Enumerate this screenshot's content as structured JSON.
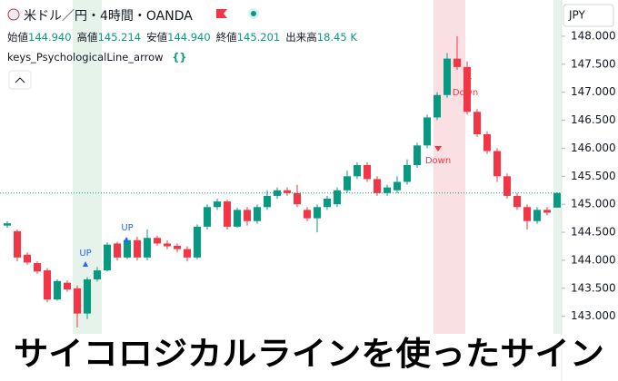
{
  "header": {
    "symbol": "米ドル／円・4時間・OANDA",
    "ohlc": [
      {
        "label": "始値",
        "value": "144.940"
      },
      {
        "label": "高値",
        "value": "145.214"
      },
      {
        "label": "安値",
        "value": "144.940"
      },
      {
        "label": "終値",
        "value": "145.201"
      },
      {
        "label": "出来高",
        "value": "18.45 K"
      }
    ],
    "indicator": "keys_PsychologicalLine_arrow",
    "currency": "JPY"
  },
  "chart_data": {
    "type": "candlestick",
    "open": [
      144.62,
      144.52,
      144.1,
      143.95,
      143.82,
      143.3,
      143.6,
      143.5,
      143.05,
      143.66,
      143.82,
      144.3,
      144.05,
      144.36,
      144.05,
      144.4,
      144.3,
      144.26,
      144.2,
      144.05,
      144.6,
      144.95,
      145.05,
      144.6,
      144.9,
      144.7,
      144.95,
      145.15,
      145.25,
      145.2,
      144.9,
      144.75,
      144.95,
      145.0,
      145.25,
      145.5,
      145.7,
      145.45,
      145.2,
      145.25,
      145.4,
      145.7,
      146.05,
      146.55,
      146.95,
      147.6,
      147.45,
      146.65,
      146.25,
      145.95,
      145.5,
      145.15,
      144.95,
      144.7,
      144.9,
      144.94
    ],
    "high": [
      144.7,
      144.55,
      144.14,
      143.98,
      143.86,
      143.66,
      143.64,
      143.55,
      143.7,
      143.88,
      144.32,
      144.33,
      144.4,
      144.42,
      144.55,
      144.44,
      144.36,
      144.3,
      144.25,
      144.64,
      145.0,
      145.1,
      145.08,
      144.94,
      144.95,
      145.0,
      145.25,
      145.3,
      145.3,
      145.35,
      144.95,
      145.0,
      145.15,
      145.3,
      145.6,
      145.75,
      145.75,
      145.5,
      145.35,
      145.5,
      145.8,
      146.1,
      146.6,
      147.0,
      147.7,
      148.0,
      147.55,
      146.7,
      146.3,
      146.0,
      145.55,
      145.2,
      145.0,
      144.95,
      144.95,
      145.214
    ],
    "low": [
      144.58,
      143.98,
      143.92,
      143.76,
      143.25,
      143.28,
      143.44,
      142.8,
      142.95,
      143.62,
      143.8,
      144.0,
      144.02,
      144.0,
      144.0,
      144.26,
      144.2,
      144.14,
      143.98,
      144.02,
      144.55,
      144.9,
      144.55,
      144.58,
      144.62,
      144.65,
      144.9,
      145.1,
      145.15,
      144.95,
      144.7,
      144.5,
      144.9,
      144.95,
      145.2,
      145.45,
      145.4,
      145.15,
      145.15,
      145.2,
      145.35,
      145.65,
      146.0,
      146.5,
      146.9,
      147.4,
      146.6,
      146.2,
      145.9,
      145.4,
      145.1,
      144.9,
      144.55,
      144.65,
      144.8,
      144.94
    ],
    "close": [
      144.66,
      144.05,
      143.96,
      143.8,
      143.3,
      143.63,
      143.48,
      143.05,
      143.66,
      143.82,
      144.28,
      144.05,
      144.36,
      144.05,
      144.4,
      144.3,
      144.25,
      144.2,
      144.05,
      144.6,
      144.95,
      145.05,
      144.6,
      144.9,
      144.7,
      144.95,
      145.15,
      145.25,
      145.2,
      145.0,
      144.75,
      144.95,
      145.1,
      145.25,
      145.5,
      145.7,
      145.45,
      145.2,
      145.3,
      145.4,
      145.7,
      146.05,
      146.55,
      146.95,
      147.6,
      147.45,
      146.65,
      146.25,
      145.95,
      145.5,
      145.15,
      144.95,
      144.7,
      144.9,
      144.85,
      145.201
    ],
    "up_color": "#089981",
    "down_color": "#f23645",
    "ylim": [
      142.72,
      148.29
    ],
    "yticks": [
      {
        "value": 143,
        "label": "143.000"
      },
      {
        "value": 143.5,
        "label": "143.500"
      },
      {
        "value": 144,
        "label": "144.000"
      },
      {
        "value": 144.5,
        "label": "144.500"
      },
      {
        "value": 145,
        "label": "145.000"
      },
      {
        "value": 145.5,
        "label": "145.500"
      },
      {
        "value": 146,
        "label": "146.000"
      },
      {
        "value": 146.5,
        "label": "146.500"
      },
      {
        "value": 147,
        "label": "147.000"
      },
      {
        "value": 147.5,
        "label": "147.500"
      },
      {
        "value": 148,
        "label": "148.000"
      }
    ],
    "annotations": [
      "UP",
      "UP",
      "Down",
      "Down"
    ]
  },
  "caption": "サイコロジカルラインを使ったサイン"
}
